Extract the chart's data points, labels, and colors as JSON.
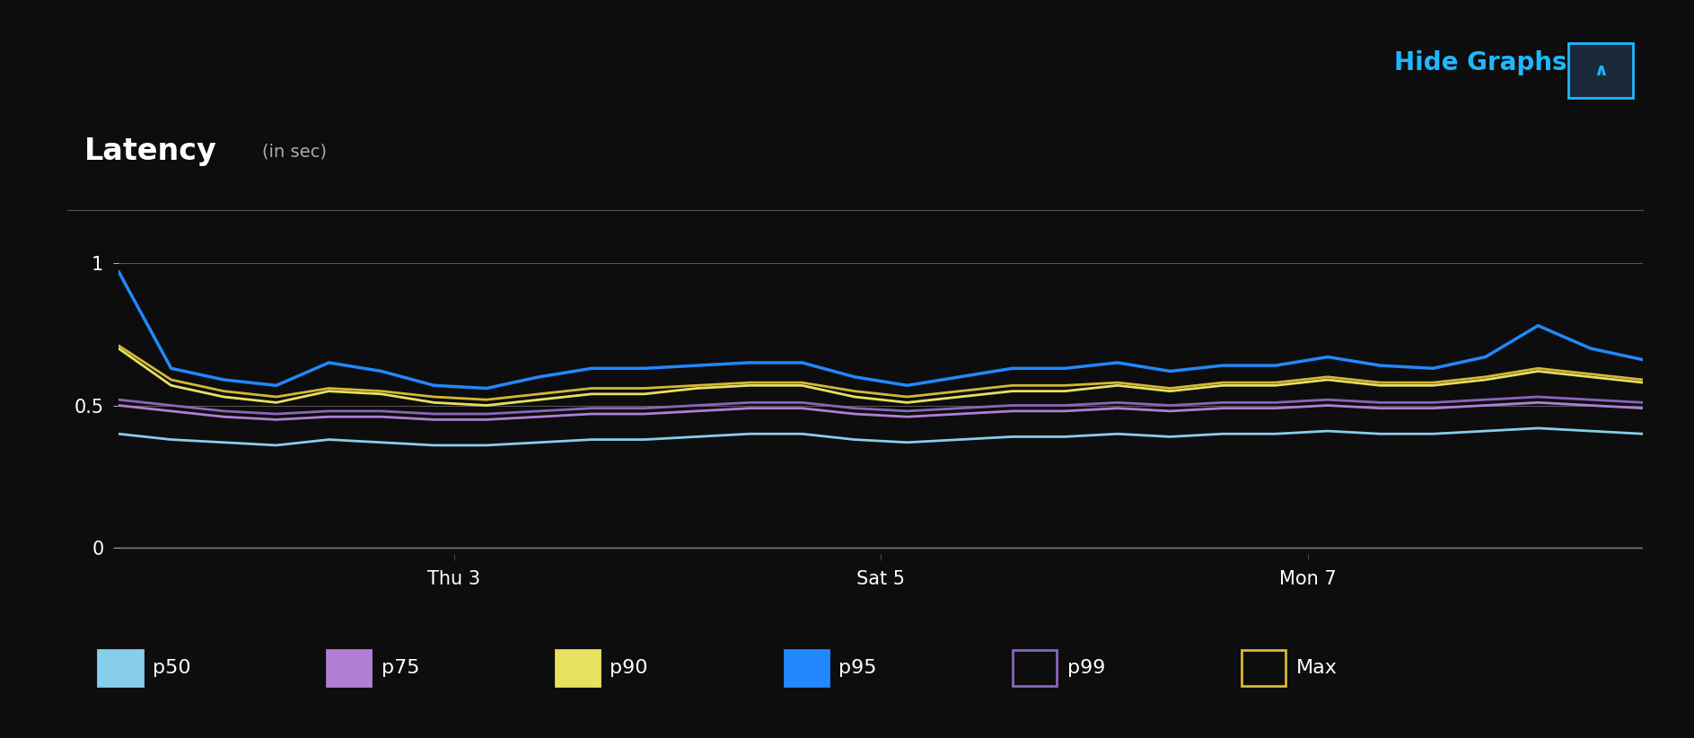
{
  "title": "Latency",
  "subtitle": "(in sec)",
  "background_color": "#0d0d0d",
  "plot_bg_color": "#0d0d0d",
  "text_color": "#ffffff",
  "grid_color": "#444444",
  "hide_graphs_text": "Hide Graphs",
  "hide_graphs_color": "#1eb8ff",
  "yticks": [
    0,
    0.5,
    1
  ],
  "ylim": [
    -0.02,
    1.12
  ],
  "x_tick_labels": [
    "Thu 3",
    "Sat 5",
    "Mon 7"
  ],
  "x_tick_positions": [
    0.22,
    0.5,
    0.78
  ],
  "series_order": [
    "p50",
    "p75",
    "p90",
    "p95",
    "p99",
    "Max"
  ],
  "series": {
    "p50": {
      "color": "#87CEEB",
      "linewidth": 2.0,
      "values": [
        0.4,
        0.38,
        0.37,
        0.36,
        0.38,
        0.37,
        0.36,
        0.36,
        0.37,
        0.38,
        0.38,
        0.39,
        0.4,
        0.4,
        0.38,
        0.37,
        0.38,
        0.39,
        0.39,
        0.4,
        0.39,
        0.4,
        0.4,
        0.41,
        0.4,
        0.4,
        0.41,
        0.42,
        0.41,
        0.4
      ]
    },
    "p75": {
      "color": "#b07fd4",
      "linewidth": 2.0,
      "values": [
        0.5,
        0.48,
        0.46,
        0.45,
        0.46,
        0.46,
        0.45,
        0.45,
        0.46,
        0.47,
        0.47,
        0.48,
        0.49,
        0.49,
        0.47,
        0.46,
        0.47,
        0.48,
        0.48,
        0.49,
        0.48,
        0.49,
        0.49,
        0.5,
        0.49,
        0.49,
        0.5,
        0.51,
        0.5,
        0.49
      ]
    },
    "p90": {
      "color": "#e8e060",
      "linewidth": 2.0,
      "values": [
        0.7,
        0.57,
        0.53,
        0.51,
        0.55,
        0.54,
        0.51,
        0.5,
        0.52,
        0.54,
        0.54,
        0.56,
        0.57,
        0.57,
        0.53,
        0.51,
        0.53,
        0.55,
        0.55,
        0.57,
        0.55,
        0.57,
        0.57,
        0.59,
        0.57,
        0.57,
        0.59,
        0.62,
        0.6,
        0.58
      ]
    },
    "p95": {
      "color": "#2288ff",
      "linewidth": 2.5,
      "values": [
        0.97,
        0.63,
        0.59,
        0.57,
        0.65,
        0.62,
        0.57,
        0.56,
        0.6,
        0.63,
        0.63,
        0.64,
        0.65,
        0.65,
        0.6,
        0.57,
        0.6,
        0.63,
        0.63,
        0.65,
        0.62,
        0.64,
        0.64,
        0.67,
        0.64,
        0.63,
        0.67,
        0.78,
        0.7,
        0.66
      ]
    },
    "p99": {
      "color": "#8866bb",
      "linewidth": 2.0,
      "values": [
        0.52,
        0.5,
        0.48,
        0.47,
        0.48,
        0.48,
        0.47,
        0.47,
        0.48,
        0.49,
        0.49,
        0.5,
        0.51,
        0.51,
        0.49,
        0.48,
        0.49,
        0.5,
        0.5,
        0.51,
        0.5,
        0.51,
        0.51,
        0.52,
        0.51,
        0.51,
        0.52,
        0.53,
        0.52,
        0.51
      ]
    },
    "Max": {
      "color": "#d4b832",
      "linewidth": 2.0,
      "values": [
        0.71,
        0.59,
        0.55,
        0.53,
        0.56,
        0.55,
        0.53,
        0.52,
        0.54,
        0.56,
        0.56,
        0.57,
        0.58,
        0.58,
        0.55,
        0.53,
        0.55,
        0.57,
        0.57,
        0.58,
        0.56,
        0.58,
        0.58,
        0.6,
        0.58,
        0.58,
        0.6,
        0.63,
        0.61,
        0.59
      ]
    }
  },
  "legend_entries": [
    {
      "key": "p50",
      "color": "#87CEEB",
      "label": "p50",
      "filled": true
    },
    {
      "key": "p75",
      "color": "#b07fd4",
      "label": "p75",
      "filled": true
    },
    {
      "key": "p90",
      "color": "#e8e060",
      "label": "p90",
      "filled": true
    },
    {
      "key": "p95",
      "color": "#2288ff",
      "label": "p95",
      "filled": true
    },
    {
      "key": "p99",
      "color": "#8866bb",
      "label": "p99",
      "filled": false
    },
    {
      "key": "Max",
      "color": "#d4b832",
      "label": "Max",
      "filled": false
    }
  ]
}
